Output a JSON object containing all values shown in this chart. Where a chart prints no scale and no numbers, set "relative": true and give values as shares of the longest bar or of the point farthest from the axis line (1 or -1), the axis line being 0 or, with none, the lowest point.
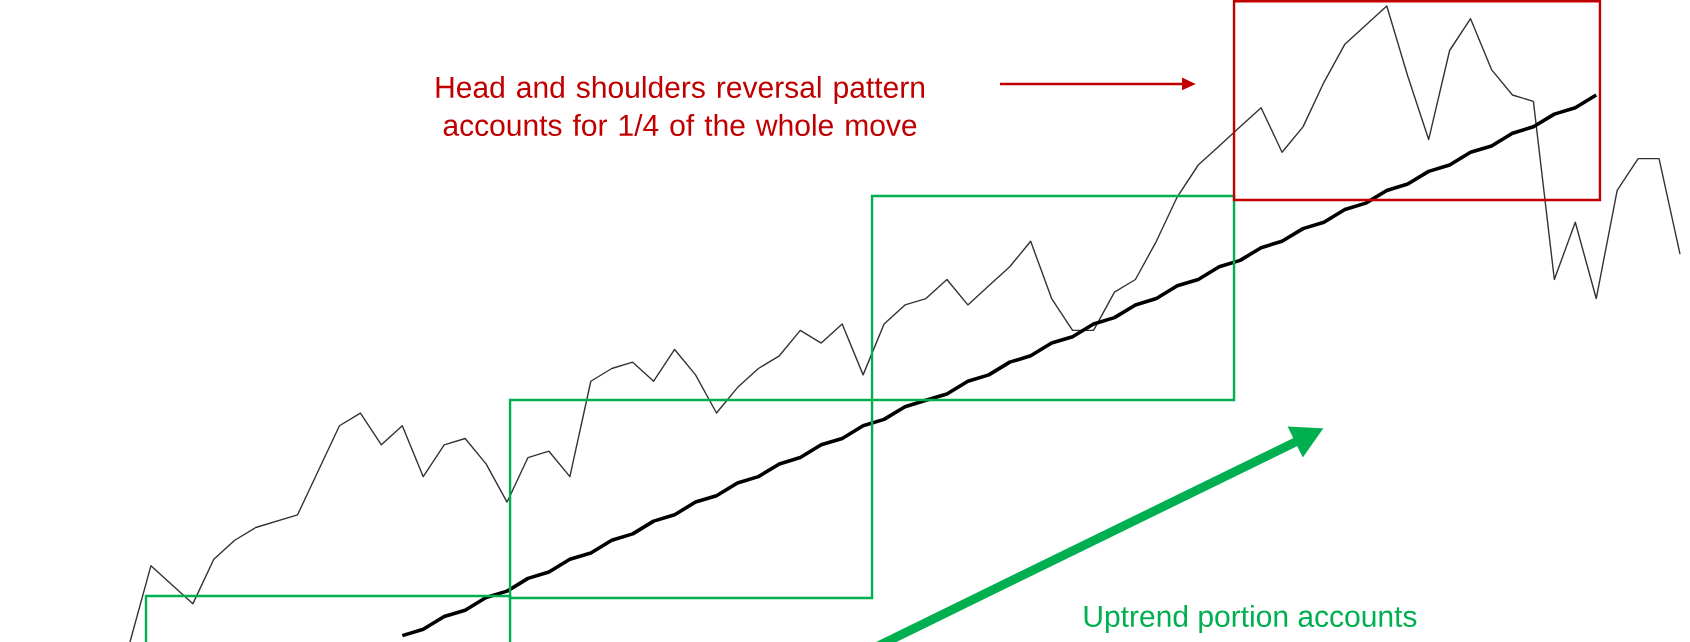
{
  "chart_data": {
    "type": "line",
    "relative": true,
    "tick_labels": false,
    "categories": [
      null,
      null,
      null,
      null,
      null,
      null,
      null,
      null,
      null,
      null,
      null,
      null,
      null,
      null,
      null,
      null,
      null,
      null,
      null,
      null,
      null,
      null,
      null,
      null,
      null,
      null,
      null,
      null,
      null,
      null,
      null,
      null,
      null,
      null,
      null,
      null,
      null,
      null,
      null,
      null,
      null,
      null,
      null,
      null,
      null,
      null,
      null,
      null,
      null,
      null,
      null,
      null,
      null,
      null,
      null,
      null,
      null,
      null,
      null,
      null,
      null,
      null,
      null,
      null,
      null,
      null,
      null,
      null,
      null,
      null,
      null,
      null,
      null,
      null,
      null
    ],
    "series": [
      {
        "color": "#333333",
        "values": [
          0,
          0.12,
          0.09,
          0.06,
          0.13,
          0.16,
          0.18,
          0.19,
          0.2,
          0.27,
          0.34,
          0.36,
          0.31,
          0.34,
          0.26,
          0.31,
          0.32,
          0.28,
          0.22,
          0.29,
          0.3,
          0.26,
          0.41,
          0.43,
          0.44,
          0.41,
          0.46,
          0.42,
          0.36,
          0.4,
          0.43,
          0.45,
          0.49,
          0.47,
          0.5,
          0.42,
          0.5,
          0.53,
          0.54,
          0.57,
          0.53,
          0.56,
          0.59,
          0.63,
          0.54,
          0.49,
          0.49,
          0.55,
          0.57,
          0.63,
          0.7,
          0.75,
          0.78,
          0.81,
          0.84,
          0.77,
          0.81,
          0.88,
          0.94,
          0.97,
          1,
          0.89,
          0.79,
          0.93,
          0.98,
          0.9,
          0.86,
          0.85,
          0.57,
          0.66,
          0.54,
          0.71,
          0.76,
          0.76,
          0.61
        ]
      },
      {
        "type": "line",
        "color": "#000000",
        "values": [
          null,
          null,
          null,
          null,
          null,
          null,
          null,
          null,
          null,
          null,
          null,
          null,
          null,
          0.01,
          0.02,
          0.04,
          0.05,
          0.07,
          0.08,
          0.1,
          0.11,
          0.13,
          0.14,
          0.16,
          0.17,
          0.19,
          0.2,
          0.22,
          0.23,
          0.25,
          0.26,
          0.28,
          0.29,
          0.31,
          0.32,
          0.34,
          0.35,
          0.37,
          0.38,
          0.39,
          0.41,
          0.42,
          0.44,
          0.45,
          0.47,
          0.48,
          0.5,
          0.51,
          0.53,
          0.54,
          0.56,
          0.57,
          0.59,
          0.6,
          0.62,
          0.63,
          0.65,
          0.66,
          0.68,
          0.69,
          0.71,
          0.72,
          0.74,
          0.75,
          0.77,
          0.78,
          0.8,
          0.81,
          0.83,
          0.84,
          0.86,
          null,
          null,
          null,
          null
        ]
      }
    ],
    "annotations": [
      "Head and shoulders reversal pattern accounts for 1/4 of the whole move",
      "Uptrend portion accounts"
    ]
  }
}
